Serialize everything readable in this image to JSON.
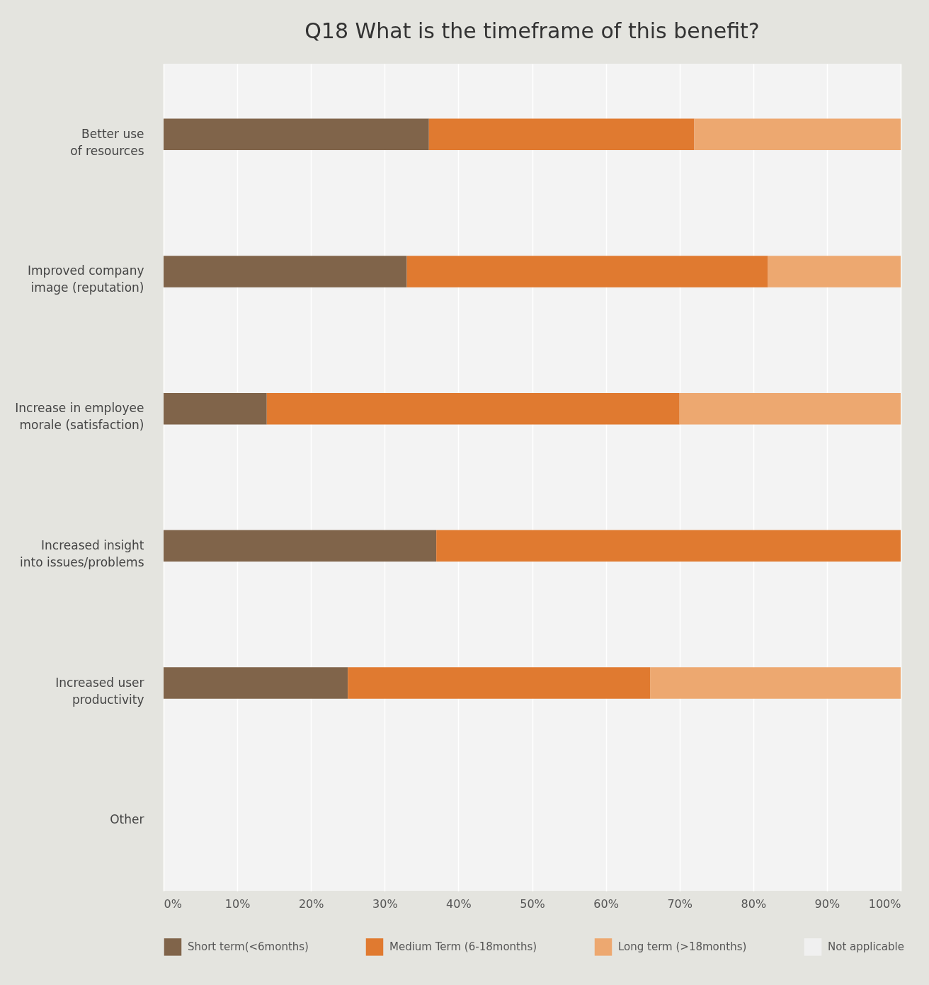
{
  "chart_data": {
    "type": "bar",
    "title": "Q18 What is the timeframe of this benefit?",
    "orientation": "horizontal",
    "stacked": true,
    "categories": [
      "Better use of resources",
      "Improved company image (reputation)",
      "Increase in employee morale (satisfaction)",
      "Increased insight into issues/problems",
      "Increased user productivity",
      "Other"
    ],
    "series": [
      {
        "name": "Short term(<6months)",
        "color": "#80644a",
        "values": [
          36,
          33,
          14,
          37,
          25,
          null
        ]
      },
      {
        "name": "Medium Term (6-18months)",
        "color": "#e07a30",
        "values": [
          36,
          49,
          56,
          63,
          41,
          null
        ]
      },
      {
        "name": "Long term (>18months)",
        "color": "#eda870",
        "values": [
          28,
          18,
          30,
          null,
          34,
          null
        ]
      },
      {
        "name": "Not applicable",
        "color": "#f0f0f0",
        "values": [
          null,
          null,
          null,
          null,
          null,
          null
        ]
      }
    ],
    "xlim": [
      0,
      100
    ],
    "xticks": [
      {
        "value": 0,
        "label": "0%"
      },
      {
        "value": 10,
        "label": "10%"
      },
      {
        "value": 20,
        "label": "20%"
      },
      {
        "value": 30,
        "label": "30%"
      },
      {
        "value": 40,
        "label": "40%"
      },
      {
        "value": 50,
        "label": "50%"
      },
      {
        "value": 60,
        "label": "60%"
      },
      {
        "value": 70,
        "label": "70%"
      },
      {
        "value": 80,
        "label": "80%"
      },
      {
        "value": 90,
        "label": "90%"
      },
      {
        "value": 100,
        "label": "100%"
      }
    ],
    "grid": "x",
    "legend": "bottom"
  }
}
